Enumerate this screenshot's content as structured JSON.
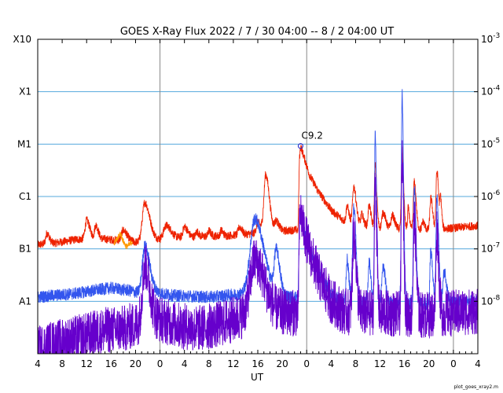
{
  "chart_data": {
    "type": "line",
    "title": "GOES X-Ray Flux   2022 /  7 / 30   04:00 --  8 /  2   04:00   UT",
    "xlabel": "UT",
    "footer": "plot_goes_xray2.m",
    "x_range_hours": [
      0,
      72
    ],
    "x_ticks": [
      {
        "h": 0,
        "label": "4"
      },
      {
        "h": 4,
        "label": "8"
      },
      {
        "h": 8,
        "label": "12"
      },
      {
        "h": 12,
        "label": "16"
      },
      {
        "h": 16,
        "label": "20"
      },
      {
        "h": 20,
        "label": "0"
      },
      {
        "h": 24,
        "label": "4"
      },
      {
        "h": 28,
        "label": "8"
      },
      {
        "h": 32,
        "label": "12"
      },
      {
        "h": 36,
        "label": "16"
      },
      {
        "h": 40,
        "label": "20"
      },
      {
        "h": 44,
        "label": "0"
      },
      {
        "h": 48,
        "label": "4"
      },
      {
        "h": 52,
        "label": "8"
      },
      {
        "h": 56,
        "label": "12"
      },
      {
        "h": 60,
        "label": "16"
      },
      {
        "h": 64,
        "label": "20"
      },
      {
        "h": 68,
        "label": "0"
      },
      {
        "h": 72,
        "label": "4"
      }
    ],
    "day_boundaries_hours": [
      20,
      44,
      68
    ],
    "y_scale": "log",
    "y_range": [
      1e-09,
      0.001
    ],
    "y_left_labels": [
      {
        "value": 1e-08,
        "label": "A1"
      },
      {
        "value": 1e-07,
        "label": "B1"
      },
      {
        "value": 1e-06,
        "label": "C1"
      },
      {
        "value": 1e-05,
        "label": "M1"
      },
      {
        "value": 0.0001,
        "label": "X1"
      },
      {
        "value": 0.001,
        "label": "X10"
      }
    ],
    "y_right_labels": [
      {
        "value": 1e-08,
        "base": "10",
        "exp": "-8"
      },
      {
        "value": 1e-07,
        "base": "10",
        "exp": "-7"
      },
      {
        "value": 1e-06,
        "base": "10",
        "exp": "-6"
      },
      {
        "value": 1e-05,
        "base": "10",
        "exp": "-5"
      },
      {
        "value": 0.0001,
        "base": "10",
        "exp": "-4"
      },
      {
        "value": 0.001,
        "base": "10",
        "exp": "-3"
      }
    ],
    "grid_horizontal": true,
    "colors": {
      "long": "#ee2200",
      "short": "#3355ee",
      "short_noisy": "#6600cc",
      "long_alt": "#ff9900",
      "grid": "#55aadd",
      "day_line": "#888888"
    },
    "annotation": {
      "label": "C9.2",
      "x_hour": 43.0,
      "flux": 9.2e-06
    },
    "series": [
      {
        "key": "long",
        "base": [
          [
            0,
            1.2e-07
          ],
          [
            3,
            1.3e-07
          ],
          [
            6,
            1.5e-07
          ],
          [
            9,
            1.6e-07
          ],
          [
            12,
            1.5e-07
          ],
          [
            15,
            1.4e-07
          ],
          [
            17,
            1.3e-07
          ],
          [
            19,
            1.5e-07
          ],
          [
            22,
            1.6e-07
          ],
          [
            25,
            1.7e-07
          ],
          [
            28,
            1.75e-07
          ],
          [
            31,
            1.8e-07
          ],
          [
            34,
            1.9e-07
          ],
          [
            36,
            2e-07
          ],
          [
            39,
            2.1e-07
          ],
          [
            42,
            2.3e-07
          ],
          [
            42.6,
            2.3e-07
          ],
          [
            42.8,
            5e-06
          ],
          [
            43.0,
            9.2e-06
          ],
          [
            43.5,
            6e-06
          ],
          [
            44.5,
            2.5e-06
          ],
          [
            46,
            1.2e-06
          ],
          [
            48,
            5.5e-07
          ],
          [
            50,
            3.5e-07
          ],
          [
            52,
            3e-07
          ],
          [
            56,
            2.5e-07
          ],
          [
            60,
            2.4e-07
          ],
          [
            64,
            2.3e-07
          ],
          [
            68,
            2.5e-07
          ],
          [
            72,
            2.8e-07
          ]
        ],
        "bumps": [
          [
            1.5,
            0.4,
            0.2
          ],
          [
            8,
            0.5,
            0.35
          ],
          [
            9.5,
            0.4,
            0.25
          ],
          [
            14,
            0.6,
            0.2
          ],
          [
            17.5,
            0.8,
            0.75
          ],
          [
            21,
            0.8,
            0.25
          ],
          [
            24,
            0.5,
            0.2
          ],
          [
            26,
            0.3,
            0.1
          ],
          [
            28,
            0.3,
            0.1
          ],
          [
            30,
            0.3,
            0.1
          ],
          [
            33,
            0.4,
            0.15
          ],
          [
            36,
            0.5,
            0.2
          ],
          [
            37.3,
            0.6,
            1.1
          ],
          [
            39,
            0.5,
            0.2
          ],
          [
            50.6,
            0.3,
            0.3
          ],
          [
            51.7,
            0.4,
            0.7
          ],
          [
            53,
            0.3,
            0.2
          ],
          [
            54.2,
            0.3,
            0.4
          ],
          [
            55.2,
            0.25,
            1.2
          ],
          [
            56.5,
            0.4,
            0.3
          ],
          [
            58,
            0.4,
            0.25
          ],
          [
            59.6,
            0.25,
            1.5
          ],
          [
            60.6,
            0.2,
            0.4
          ],
          [
            61.6,
            0.3,
            0.9
          ],
          [
            63,
            0.3,
            0.15
          ],
          [
            64.3,
            0.3,
            0.6
          ],
          [
            65.3,
            0.3,
            1.1
          ],
          [
            65.9,
            0.2,
            0.5
          ]
        ],
        "noise": 0.08
      },
      {
        "key": "long_alt",
        "base": [
          [
            12.5,
            1.3e-07
          ],
          [
            13,
            1.5e-07
          ],
          [
            13.5,
            2e-07
          ],
          [
            14,
            1.4e-07
          ],
          [
            14.5,
            1.1e-07
          ],
          [
            15,
            1.2e-07
          ],
          [
            15.5,
            1.4e-07
          ]
        ],
        "bumps": [],
        "noise": 0.06
      },
      {
        "key": "short",
        "base": [
          [
            0,
            1.2e-08
          ],
          [
            3,
            1.3e-08
          ],
          [
            6,
            1.4e-08
          ],
          [
            9,
            1.6e-08
          ],
          [
            12,
            1.8e-08
          ],
          [
            15,
            1.6e-08
          ],
          [
            17,
            1.4e-08
          ],
          [
            19,
            1.5e-08
          ],
          [
            22,
            1.3e-08
          ],
          [
            25,
            1.25e-08
          ],
          [
            28,
            1.2e-08
          ],
          [
            31,
            1.3e-08
          ],
          [
            34,
            1.4e-08
          ],
          [
            36,
            1.5e-08
          ],
          [
            39,
            1.3e-08
          ],
          [
            42,
            1.2e-08
          ],
          [
            42.6,
            1.2e-08
          ],
          [
            42.8,
            2.5e-07
          ],
          [
            43.0,
            5.5e-07
          ],
          [
            43.5,
            2.5e-07
          ],
          [
            44.5,
            1e-07
          ],
          [
            46,
            3.5e-08
          ],
          [
            48,
            1.4e-08
          ],
          [
            50,
            1e-08
          ],
          [
            52,
            9.5e-09
          ],
          [
            56,
            9e-09
          ],
          [
            60,
            9e-09
          ],
          [
            64,
            9e-09
          ],
          [
            68,
            9.5e-09
          ],
          [
            72,
            1e-08
          ]
        ],
        "bumps": [
          [
            17.5,
            0.8,
            0.9
          ],
          [
            35.5,
            1.5,
            1.4
          ],
          [
            39,
            0.6,
            0.8
          ],
          [
            50.6,
            0.3,
            0.8
          ],
          [
            51.7,
            0.4,
            1.8
          ],
          [
            54.2,
            0.3,
            0.8
          ],
          [
            55.2,
            0.25,
            3.2
          ],
          [
            56.5,
            0.4,
            0.7
          ],
          [
            59.6,
            0.25,
            4.0
          ],
          [
            61.6,
            0.3,
            2.2
          ],
          [
            64.3,
            0.3,
            1.0
          ],
          [
            65.3,
            0.3,
            2.0
          ],
          [
            66.5,
            0.4,
            0.6
          ]
        ],
        "noise": 0.12
      },
      {
        "key": "short_noisy",
        "base": [
          [
            0,
            1.2e-09
          ],
          [
            2,
            1.5e-09
          ],
          [
            5,
            1.8e-09
          ],
          [
            8,
            2.2e-09
          ],
          [
            11,
            2.8e-09
          ],
          [
            14,
            3e-09
          ],
          [
            16,
            3.5e-09
          ],
          [
            18,
            5e-09
          ],
          [
            20,
            4.5e-09
          ],
          [
            23,
            3.5e-09
          ],
          [
            26,
            3e-09
          ],
          [
            29,
            3.5e-09
          ],
          [
            32,
            4.5e-09
          ],
          [
            35,
            6e-09
          ],
          [
            38,
            6.5e-09
          ],
          [
            41,
            6e-09
          ],
          [
            42.6,
            6e-09
          ],
          [
            42.8,
            2.3e-07
          ],
          [
            43.0,
            5.3e-07
          ],
          [
            43.5,
            2.4e-07
          ],
          [
            44.5,
            9e-08
          ],
          [
            46,
            3e-08
          ],
          [
            48,
            1e-08
          ],
          [
            50,
            6.5e-09
          ],
          [
            52,
            6e-09
          ],
          [
            56,
            6e-09
          ],
          [
            60,
            5.5e-09
          ],
          [
            64,
            5.5e-09
          ],
          [
            68,
            6e-09
          ],
          [
            72,
            6.5e-09
          ]
        ],
        "bumps": [
          [
            17.5,
            0.8,
            1.0
          ],
          [
            35.5,
            1.5,
            1.0
          ],
          [
            51.7,
            0.4,
            1.5
          ],
          [
            55.2,
            0.25,
            2.5
          ],
          [
            59.6,
            0.25,
            3.0
          ],
          [
            61.6,
            0.3,
            1.8
          ],
          [
            65.3,
            0.3,
            1.6
          ]
        ],
        "noise": 0.45
      }
    ]
  }
}
